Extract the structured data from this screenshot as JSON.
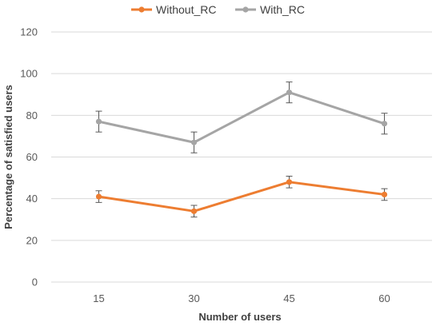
{
  "chart_data": {
    "type": "line",
    "categories": [
      "15",
      "30",
      "45",
      "60"
    ],
    "series": [
      {
        "name": "Without_RC",
        "color": "#ED7D31",
        "values": [
          41,
          34,
          48,
          42
        ],
        "errors": [
          2.8,
          2.8,
          2.8,
          2.8
        ]
      },
      {
        "name": "With_RC",
        "color": "#A5A5A5",
        "values": [
          77,
          67,
          91,
          76
        ],
        "errors": [
          5,
          5,
          5,
          5
        ]
      }
    ],
    "xlabel": "Number of users",
    "ylabel": "Percentage of satisfied users",
    "ylim": [
      0,
      120
    ],
    "yticks": [
      0,
      20,
      40,
      60,
      80,
      100,
      120
    ],
    "grid": true,
    "legend_position": "top-center"
  }
}
